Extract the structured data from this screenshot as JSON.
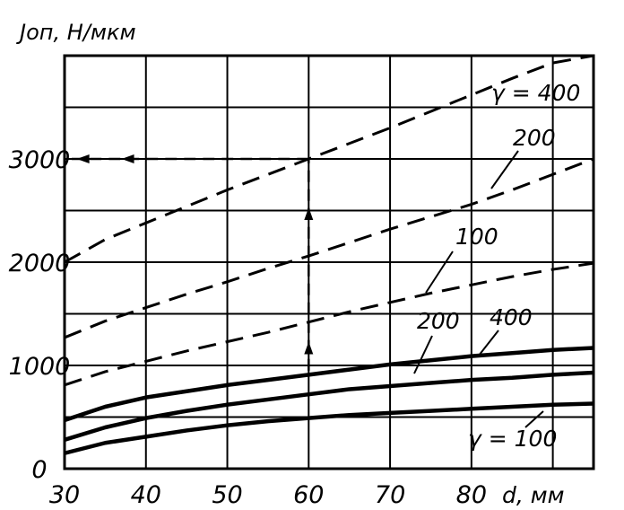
{
  "chart_data": {
    "type": "line",
    "ylabel": "Jоп, Н/мкм",
    "xlabel": "d, мм",
    "x": [
      30,
      35,
      40,
      45,
      50,
      55,
      60,
      65,
      70,
      75,
      80,
      85,
      90,
      95
    ],
    "xlim": [
      30,
      95
    ],
    "ylim": [
      0,
      4000
    ],
    "x_ticks": [
      "30",
      "40",
      "50",
      "60",
      "70",
      "80"
    ],
    "y_ticks": [
      {
        "value": 0,
        "label": "0"
      },
      {
        "value": 1000,
        "label": "1000"
      },
      {
        "value": 2000,
        "label": "2000"
      },
      {
        "value": 3000,
        "label": "3000"
      }
    ],
    "grid": true,
    "series": [
      {
        "name": "γ = 400",
        "style": "dashed",
        "values": [
          2000,
          2220,
          2380,
          2540,
          2700,
          2850,
          3000,
          3150,
          3300,
          3460,
          3620,
          3780,
          3930,
          4000
        ]
      },
      {
        "name": "200",
        "style": "dashed",
        "values": [
          1270,
          1430,
          1560,
          1690,
          1810,
          1940,
          2060,
          2190,
          2320,
          2440,
          2560,
          2700,
          2850,
          3000
        ]
      },
      {
        "name": "100",
        "style": "dashed",
        "values": [
          810,
          940,
          1040,
          1140,
          1230,
          1320,
          1420,
          1520,
          1610,
          1700,
          1780,
          1860,
          1930,
          1990
        ]
      },
      {
        "name": "400",
        "style": "solid",
        "values": [
          470,
          600,
          690,
          750,
          810,
          860,
          910,
          960,
          1010,
          1050,
          1090,
          1120,
          1150,
          1170
        ]
      },
      {
        "name": "200",
        "style": "solid",
        "values": [
          280,
          400,
          490,
          560,
          620,
          670,
          720,
          770,
          800,
          830,
          860,
          880,
          910,
          930
        ]
      },
      {
        "name": "γ = 100",
        "style": "solid",
        "values": [
          150,
          250,
          310,
          370,
          420,
          460,
          490,
          520,
          540,
          560,
          580,
          600,
          620,
          630
        ]
      }
    ]
  }
}
